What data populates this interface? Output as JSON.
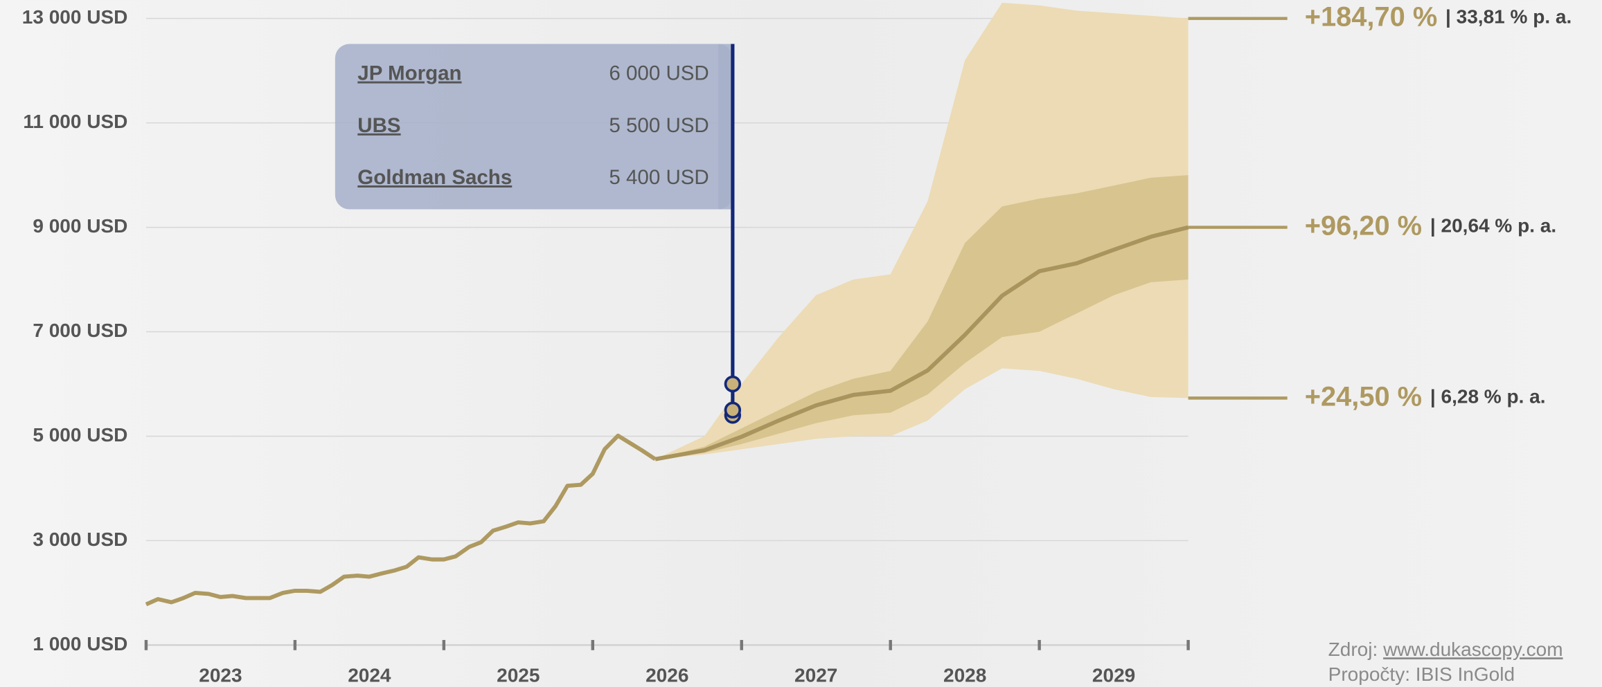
{
  "chart_data": {
    "type": "line",
    "ylim": [
      1000,
      13000
    ],
    "yticks": [
      {
        "value": 1000,
        "label": "1 000 USD"
      },
      {
        "value": 3000,
        "label": "3 000 USD"
      },
      {
        "value": 5000,
        "label": "5 000 USD"
      },
      {
        "value": 7000,
        "label": "7 000 USD"
      },
      {
        "value": 9000,
        "label": "9 000 USD"
      },
      {
        "value": 11000,
        "label": "11 000 USD"
      },
      {
        "value": 13000,
        "label": "13 000 USD"
      }
    ],
    "grid": true,
    "xlim": [
      2023,
      2030
    ],
    "xticks": [
      2023,
      2024,
      2025,
      2026,
      2027,
      2028,
      2029,
      2030
    ],
    "year_labels": [
      "2023",
      "2024",
      "2025",
      "2026",
      "2027",
      "2028",
      "2029"
    ],
    "series": [
      {
        "color": "#ae9960",
        "x": [
          2023,
          2023.08,
          2023.17,
          2023.25,
          2023.33,
          2023.42,
          2023.5,
          2023.58,
          2023.67,
          2023.75,
          2023.83,
          2023.92,
          2024,
          2024.08,
          2024.17,
          2024.25,
          2024.33,
          2024.42,
          2024.5,
          2024.58,
          2024.67,
          2024.75,
          2024.83,
          2024.92,
          2025,
          2025.08,
          2025.17,
          2025.25,
          2025.33,
          2025.42,
          2025.5,
          2025.58,
          2025.67,
          2025.75,
          2025.83,
          2025.92,
          2026,
          2026.08,
          2026.17,
          2026.25,
          2026.33,
          2026.42
        ],
        "values": [
          1780,
          1880,
          1820,
          1900,
          2000,
          1980,
          1920,
          1940,
          1900,
          1900,
          1900,
          2000,
          2040,
          2040,
          2020,
          2150,
          2310,
          2330,
          2310,
          2370,
          2430,
          2500,
          2680,
          2640,
          2640,
          2700,
          2880,
          2970,
          3190,
          3270,
          3350,
          3330,
          3370,
          3660,
          4050,
          4070,
          4280,
          4750,
          5010,
          4870,
          4730,
          4560
        ]
      },
      {
        "color": "#a8945c",
        "x": [
          2026.42,
          2026.75,
          2027,
          2027.25,
          2027.5,
          2027.75,
          2028,
          2028.25,
          2028.5,
          2028.75,
          2029,
          2029.25,
          2029.5,
          2029.75,
          2030
        ],
        "values": [
          4560,
          4730,
          4990,
          5300,
          5590,
          5790,
          5870,
          6260,
          6940,
          7690,
          8160,
          8310,
          8570,
          8820,
          9000
        ]
      }
    ],
    "bands": [
      {
        "color": "#ecdbb4",
        "x": [
          2026.42,
          2026.75,
          2027,
          2027.25,
          2027.5,
          2027.75,
          2028,
          2028.25,
          2028.5,
          2028.75,
          2029,
          2029.25,
          2029.5,
          2029.75,
          2030
        ],
        "upper": [
          4560,
          5000,
          6000,
          6900,
          7700,
          8000,
          8100,
          9500,
          12200,
          13300,
          13250,
          13150,
          13100,
          13050,
          13000
        ],
        "lower": [
          4560,
          4650,
          4750,
          4850,
          4950,
          5000,
          5000,
          5300,
          5900,
          6300,
          6250,
          6100,
          5900,
          5750,
          5730
        ]
      },
      {
        "color": "#d8c48f",
        "x": [
          2026.42,
          2026.75,
          2027,
          2027.25,
          2027.5,
          2027.75,
          2028,
          2028.25,
          2028.5,
          2028.75,
          2029,
          2029.25,
          2029.5,
          2029.75,
          2030
        ],
        "upper": [
          4560,
          4800,
          5150,
          5500,
          5850,
          6100,
          6250,
          7200,
          8700,
          9400,
          9550,
          9650,
          9800,
          9950,
          10000
        ],
        "lower": [
          4560,
          4680,
          4850,
          5050,
          5250,
          5400,
          5450,
          5800,
          6400,
          6900,
          7000,
          7350,
          7700,
          7950,
          8000
        ]
      }
    ],
    "scenarios": [
      {
        "value": 13000,
        "label": "+184,70 %",
        "pa": "| 33,81 % p. a."
      },
      {
        "value": 9000,
        "label": "+96,20 %",
        "pa": "| 20,64 % p. a."
      },
      {
        "value": 5730,
        "label": "+24,50 %",
        "pa": "| 6,28 % p. a."
      }
    ],
    "forecast_x": 2026.94,
    "forecast_color": "#13287a",
    "forecasts": [
      {
        "name": "JP Morgan",
        "value": 6000,
        "label": "6 000 USD"
      },
      {
        "name": "UBS",
        "value": 5500,
        "label": "5 500 USD"
      },
      {
        "name": "Goldman Sachs",
        "value": 5400,
        "label": "5 400 USD"
      }
    ],
    "source_prefix": "Zdroj:",
    "source_link": "www.dukascopy.com",
    "calculations": "Propočty: IBIS InGold"
  }
}
